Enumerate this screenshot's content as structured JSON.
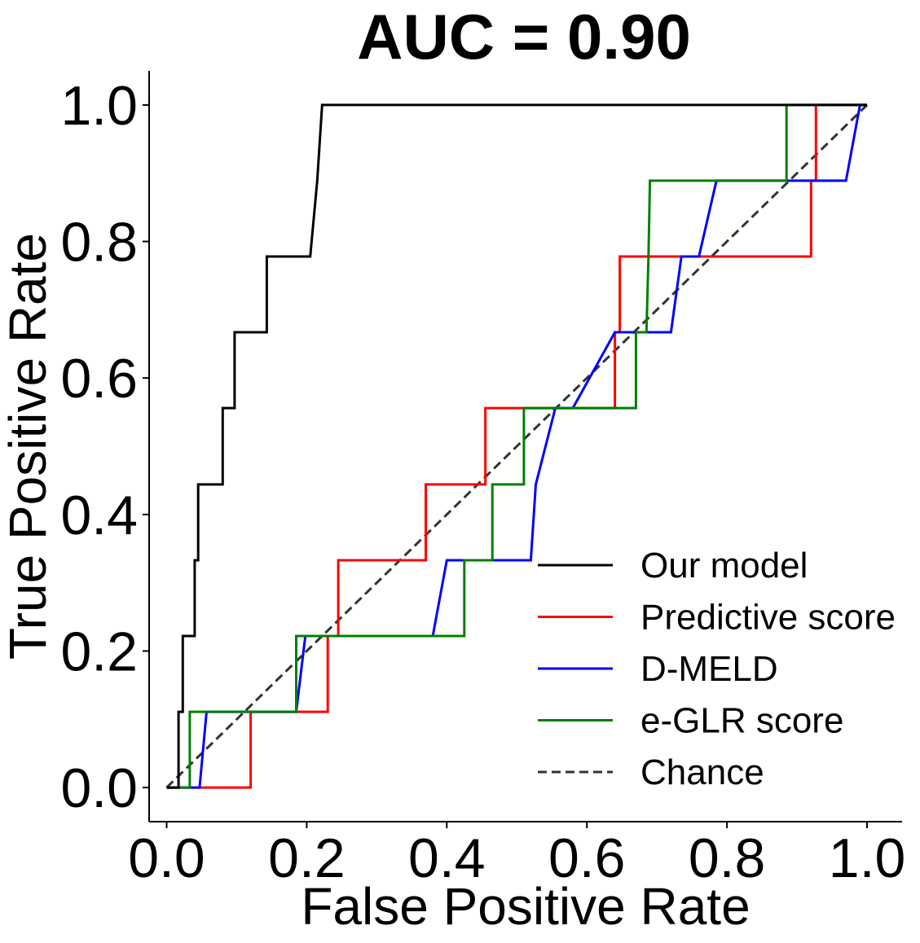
{
  "chart_data": {
    "type": "line",
    "title": "AUC = 0.90",
    "xlabel": "False Positive Rate",
    "ylabel": "True Positive Rate",
    "xlim": [
      -0.025,
      1.05
    ],
    "ylim": [
      -0.05,
      1.05
    ],
    "xticks": [
      0.0,
      0.2,
      0.4,
      0.6,
      0.8,
      1.0
    ],
    "yticks": [
      0.0,
      0.2,
      0.4,
      0.6,
      0.8,
      1.0
    ],
    "xtick_labels": [
      "0.0",
      "0.2",
      "0.4",
      "0.6",
      "0.8",
      "1.0"
    ],
    "ytick_labels": [
      "0.0",
      "0.2",
      "0.4",
      "0.6",
      "0.8",
      "1.0"
    ],
    "grid": false,
    "legend_position": "bottom-right",
    "series": [
      {
        "name": "Our model",
        "color": "#000000",
        "dash": "solid",
        "points": [
          [
            0,
            0
          ],
          [
            0.017,
            0
          ],
          [
            0.017,
            0.111
          ],
          [
            0.023,
            0.111
          ],
          [
            0.023,
            0.222
          ],
          [
            0.04,
            0.222
          ],
          [
            0.04,
            0.333
          ],
          [
            0.045,
            0.333
          ],
          [
            0.045,
            0.444
          ],
          [
            0.08,
            0.444
          ],
          [
            0.08,
            0.556
          ],
          [
            0.097,
            0.556
          ],
          [
            0.097,
            0.667
          ],
          [
            0.143,
            0.667
          ],
          [
            0.143,
            0.778
          ],
          [
            0.205,
            0.778
          ],
          [
            0.215,
            0.889
          ],
          [
            0.222,
            1.0
          ],
          [
            1.0,
            1.0
          ]
        ]
      },
      {
        "name": "Predictive score",
        "color": "#ff0000",
        "dash": "solid",
        "points": [
          [
            0,
            0
          ],
          [
            0.12,
            0
          ],
          [
            0.12,
            0.111
          ],
          [
            0.23,
            0.111
          ],
          [
            0.23,
            0.222
          ],
          [
            0.245,
            0.222
          ],
          [
            0.245,
            0.333
          ],
          [
            0.37,
            0.333
          ],
          [
            0.37,
            0.444
          ],
          [
            0.455,
            0.444
          ],
          [
            0.455,
            0.556
          ],
          [
            0.64,
            0.556
          ],
          [
            0.64,
            0.667
          ],
          [
            0.647,
            0.667
          ],
          [
            0.647,
            0.778
          ],
          [
            0.92,
            0.778
          ],
          [
            0.92,
            0.889
          ],
          [
            0.927,
            0.889
          ],
          [
            0.927,
            1.0
          ],
          [
            1.0,
            1.0
          ]
        ]
      },
      {
        "name": "D-MELD",
        "color": "#0000ff",
        "dash": "solid",
        "points": [
          [
            0,
            0
          ],
          [
            0.047,
            0
          ],
          [
            0.057,
            0.111
          ],
          [
            0.185,
            0.111
          ],
          [
            0.198,
            0.222
          ],
          [
            0.38,
            0.222
          ],
          [
            0.4,
            0.333
          ],
          [
            0.52,
            0.333
          ],
          [
            0.527,
            0.444
          ],
          [
            0.555,
            0.556
          ],
          [
            0.58,
            0.556
          ],
          [
            0.64,
            0.667
          ],
          [
            0.72,
            0.667
          ],
          [
            0.735,
            0.778
          ],
          [
            0.76,
            0.778
          ],
          [
            0.785,
            0.889
          ],
          [
            0.97,
            0.889
          ],
          [
            0.99,
            1.0
          ],
          [
            1.0,
            1.0
          ]
        ]
      },
      {
        "name": "e-GLR score",
        "color": "#008000",
        "dash": "solid",
        "points": [
          [
            0,
            0
          ],
          [
            0.033,
            0
          ],
          [
            0.033,
            0.111
          ],
          [
            0.185,
            0.111
          ],
          [
            0.185,
            0.222
          ],
          [
            0.425,
            0.222
          ],
          [
            0.425,
            0.333
          ],
          [
            0.465,
            0.333
          ],
          [
            0.465,
            0.444
          ],
          [
            0.51,
            0.444
          ],
          [
            0.51,
            0.556
          ],
          [
            0.67,
            0.556
          ],
          [
            0.67,
            0.667
          ],
          [
            0.685,
            0.667
          ],
          [
            0.688,
            0.778
          ],
          [
            0.69,
            0.889
          ],
          [
            0.885,
            0.889
          ],
          [
            0.885,
            1.0
          ],
          [
            1.0,
            1.0
          ]
        ]
      },
      {
        "name": "Chance",
        "color": "#333333",
        "dash": "dashed",
        "points": [
          [
            0,
            0
          ],
          [
            1,
            1
          ]
        ]
      }
    ]
  }
}
